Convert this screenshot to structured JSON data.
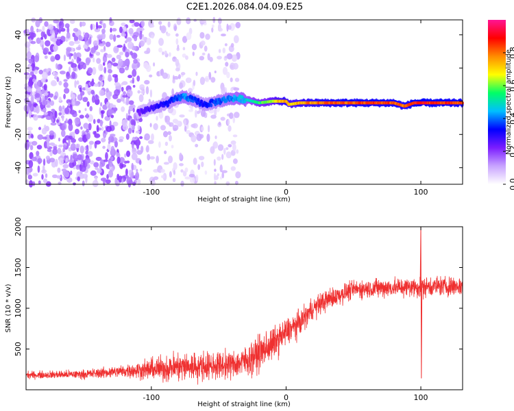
{
  "title": "C2E1.2026.084.04.09.E25",
  "chart_data": [
    {
      "type": "heatmap",
      "xlabel": "Height of straight line (km)",
      "ylabel": "Frequency (Hz)",
      "xlim": [
        -193,
        131
      ],
      "ylim": [
        -50,
        49
      ],
      "xticks": [
        -100,
        0,
        100
      ],
      "xtick_labels": [
        "-100",
        "0",
        "100"
      ],
      "yticks": [
        -40,
        -20,
        0,
        20,
        40
      ],
      "ytick_labels": [
        "-40",
        "-20",
        "0",
        "20",
        "40"
      ],
      "colorbar": {
        "label": "Normalized spectral amplitude",
        "range": [
          0,
          1
        ],
        "ticks": [
          0.0,
          0.2,
          0.4,
          0.6,
          0.8
        ],
        "tick_labels": [
          "0.0",
          "0.2",
          "0.4",
          "0.6",
          "0.8"
        ],
        "colors": [
          "#ffffff",
          "#c8a4ff",
          "#7b1dff",
          "#0000ff",
          "#00bfff",
          "#00ff66",
          "#ffff00",
          "#ff8c00",
          "#ff0000",
          "#ff1493"
        ]
      },
      "ridge": {
        "x": [
          -110,
          -100,
          -90,
          -80,
          -75,
          -70,
          -60,
          -50,
          -40,
          -30,
          -20,
          -10,
          0,
          2,
          10,
          20,
          40,
          60,
          80,
          88,
          95,
          105,
          131
        ],
        "freq": [
          -7,
          -4,
          -2,
          2,
          3,
          1,
          -2,
          0,
          2,
          1,
          -1,
          0,
          0,
          -2,
          -1,
          -1,
          -1,
          -1,
          -1,
          -3,
          -1,
          -1,
          -1
        ],
        "amplitude": [
          0.25,
          0.3,
          0.35,
          0.4,
          0.45,
          0.4,
          0.35,
          0.4,
          0.45,
          0.5,
          0.6,
          0.7,
          0.85,
          0.75,
          0.8,
          0.85,
          0.9,
          0.9,
          0.9,
          0.85,
          0.95,
          0.95,
          0.9
        ]
      },
      "noise_region": {
        "x": [
          -193,
          -35
        ],
        "dense_until": -107
      }
    },
    {
      "type": "line",
      "xlabel": "Height of straight line (km)",
      "ylabel": "SNR (10 * v/v)",
      "xlim": [
        -193,
        131
      ],
      "ylim": [
        0,
        2000
      ],
      "xticks": [
        -100,
        0,
        100
      ],
      "xtick_labels": [
        "-100",
        "0",
        "100"
      ],
      "yticks": [
        500,
        1000,
        1500,
        2000
      ],
      "ytick_labels": [
        "500",
        "1000",
        "1500",
        "2000"
      ],
      "series": [
        {
          "name": "SNR",
          "color": "#ef3030",
          "x": [
            -193,
            -150,
            -120,
            -100,
            -80,
            -60,
            -40,
            -30,
            -20,
            -10,
            0,
            10,
            20,
            30,
            50,
            70,
            90,
            100,
            110,
            131
          ],
          "y": [
            180,
            190,
            230,
            250,
            280,
            290,
            310,
            350,
            450,
            560,
            700,
            820,
            1000,
            1100,
            1230,
            1250,
            1260,
            1260,
            1270,
            1270
          ],
          "noise_amplitude": [
            40,
            50,
            70,
            120,
            170,
            160,
            150,
            170,
            200,
            180,
            160,
            140,
            120,
            120,
            100,
            110,
            110,
            120,
            110,
            110
          ],
          "spike": {
            "x": 100,
            "max": 2000,
            "min": 140
          }
        }
      ]
    }
  ]
}
